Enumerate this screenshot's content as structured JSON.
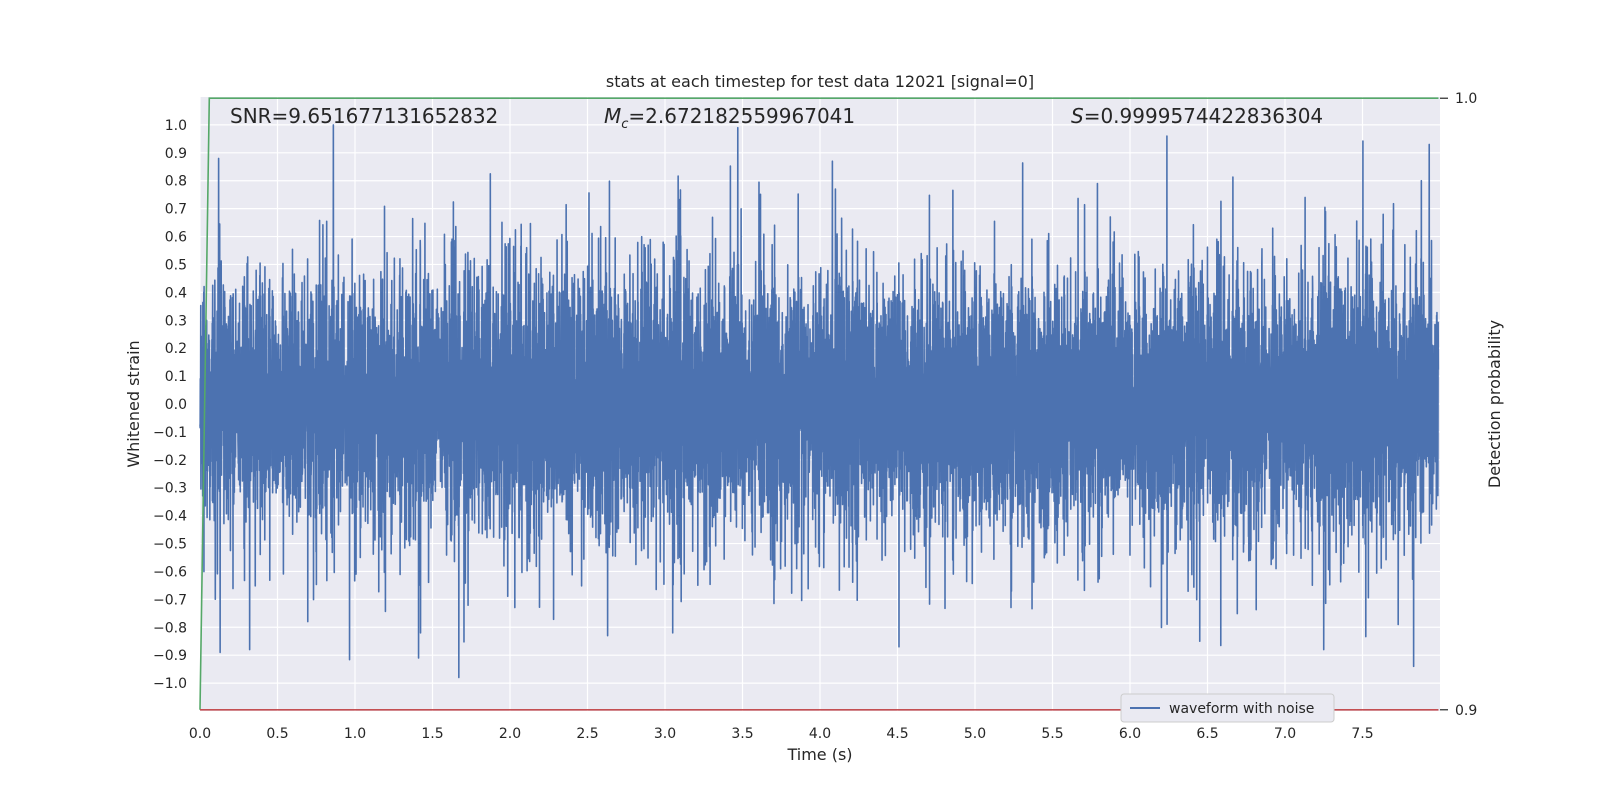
{
  "chart_data": {
    "type": "line",
    "title": "stats at each timestep for test data 12021 [signal=0]",
    "xlabel": "Time (s)",
    "ylabel": "Whitened strain",
    "y2label": "Detection probability",
    "xlim": [
      0.0,
      8.0
    ],
    "ylim": [
      -1.1,
      1.1
    ],
    "y2lim": [
      0.8998,
      1.0002
    ],
    "x_ticks": [
      0.0,
      0.5,
      1.0,
      1.5,
      2.0,
      2.5,
      3.0,
      3.5,
      4.0,
      4.5,
      5.0,
      5.5,
      6.0,
      6.5,
      7.0,
      7.5
    ],
    "x_tick_labels": [
      "0.0",
      "0.5",
      "1.0",
      "1.5",
      "2.0",
      "2.5",
      "3.0",
      "3.5",
      "4.0",
      "4.5",
      "5.0",
      "5.5",
      "6.0",
      "6.5",
      "7.0",
      "7.5"
    ],
    "y_ticks": [
      1.0,
      0.9,
      0.8,
      0.7,
      0.6,
      0.5,
      0.4,
      0.3,
      0.2,
      0.1,
      0.0,
      -0.1,
      -0.2,
      -0.3,
      -0.4,
      -0.5,
      -0.6,
      -0.7,
      -0.8,
      -0.9,
      -1.0
    ],
    "y_tick_labels": [
      "1.0",
      "0.9",
      "0.8",
      "0.7",
      "0.6",
      "0.5",
      "0.4",
      "0.3",
      "0.2",
      "0.1",
      "0.0",
      "−0.1",
      "−0.2",
      "−0.3",
      "−0.4",
      "−0.5",
      "−0.6",
      "−0.7",
      "−0.8",
      "−0.9",
      "−1.0"
    ],
    "y2_ticks": [
      1.0,
      0.9
    ],
    "y2_tick_labels": [
      "1.0",
      "0.9"
    ],
    "grid": true,
    "legend_position": "lower-right",
    "annotations": {
      "snr": "SNR=9.651677131652832",
      "mc_symbol": "M",
      "mc_sub": "c",
      "mc_value": "=2.672182559967041",
      "s_symbol": "S",
      "s_value": "=0.9999574422836304"
    },
    "series": [
      {
        "name": "waveform with noise",
        "axis": "left",
        "color": "#4c72b0",
        "sample_rate_hz": 1024,
        "duration_s": 7.99,
        "typical_amplitude": 0.33,
        "peaks": [
          {
            "x": 0.86,
            "y": 1.0
          },
          {
            "x": 3.47,
            "y": 0.99
          },
          {
            "x": 1.67,
            "y": -0.98
          },
          {
            "x": 7.83,
            "y": -0.94
          },
          {
            "x": 7.93,
            "y": 0.93
          },
          {
            "x": 0.12,
            "y": 0.88
          },
          {
            "x": 4.08,
            "y": 0.87
          },
          {
            "x": 7.88,
            "y": 0.8
          },
          {
            "x": 0.13,
            "y": -0.89
          },
          {
            "x": 0.32,
            "y": -0.88
          },
          {
            "x": 7.25,
            "y": -0.88
          },
          {
            "x": 6.45,
            "y": -0.85
          },
          {
            "x": 2.63,
            "y": -0.83
          },
          {
            "x": 1.41,
            "y": -0.91
          },
          {
            "x": 5.79,
            "y": 0.79
          },
          {
            "x": 3.05,
            "y": -0.82
          },
          {
            "x": 7.73,
            "y": -0.79
          }
        ]
      },
      {
        "name": "",
        "axis": "right",
        "color": "#55a868",
        "x": [
          0.0,
          0.06,
          7.99
        ],
        "y": [
          0.9,
          1.0,
          1.0
        ]
      },
      {
        "name": "",
        "axis": "right",
        "color": "#c44e52",
        "x": [
          0.0,
          7.99
        ],
        "y": [
          0.9,
          0.9
        ]
      }
    ]
  }
}
